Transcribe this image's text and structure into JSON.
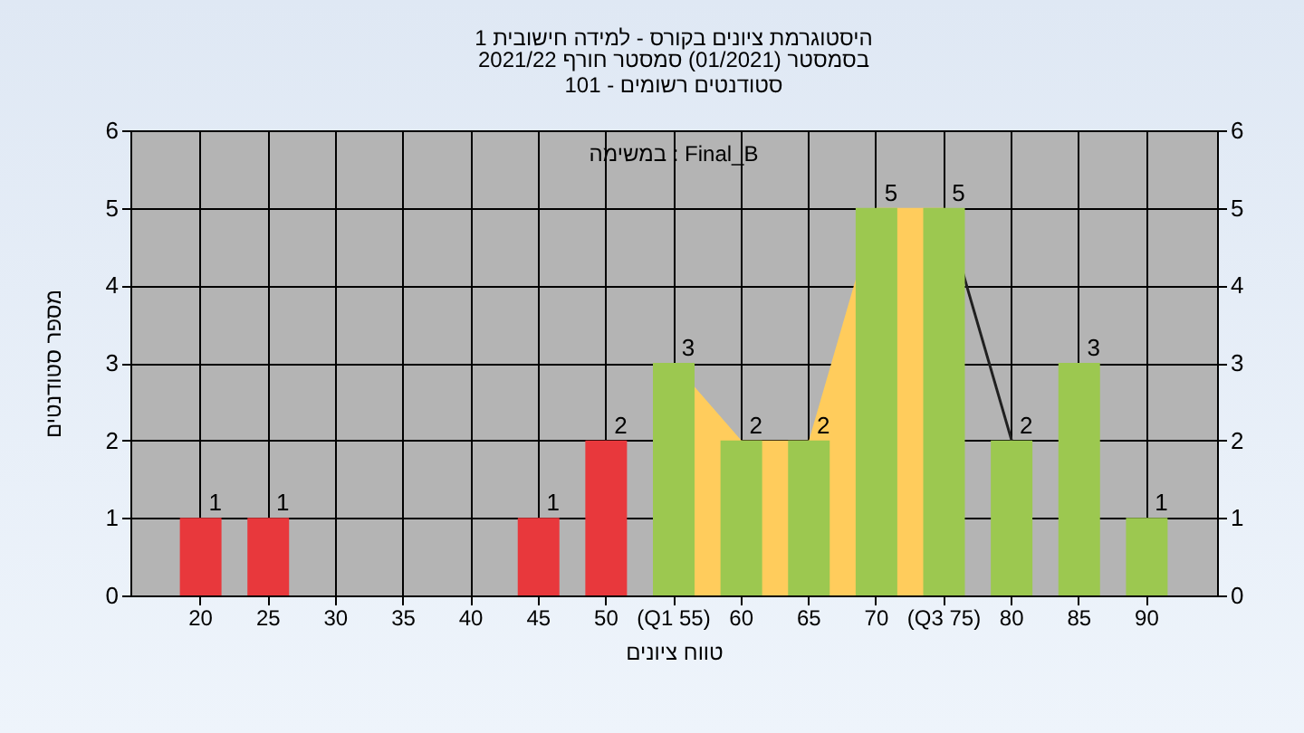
{
  "chart_data": {
    "type": "bar",
    "title": "היסטוגרמת ציונים בקורס - למידה חישובית 1",
    "subtitle": "בסמסטר (01/2021) סמסטר חורף 2021/22\nסטודנטים רשומים - 101",
    "xlabel": "טווח ציונים",
    "ylabel": "מספר סטודנטים",
    "annotations": [
      "במשימה : Final_B"
    ],
    "categories": [
      "20",
      "25",
      "30",
      "35",
      "40",
      "45",
      "50",
      "(Q1 55)",
      "60",
      "65",
      "70",
      "(Q3 75)",
      "80",
      "85",
      "90"
    ],
    "series": [
      {
        "type": "area",
        "color": "#ffcc5c",
        "values": [
          null,
          null,
          null,
          null,
          null,
          null,
          null,
          3,
          2,
          2,
          5,
          5,
          null,
          null,
          null
        ]
      },
      {
        "type": "line",
        "color": "#202020",
        "values": [
          null,
          null,
          null,
          null,
          null,
          null,
          null,
          null,
          null,
          null,
          null,
          5,
          2,
          null,
          null
        ]
      },
      {
        "colors": [
          "#e8383c",
          "#e8383c",
          "#e8383c",
          "#e8383c",
          "#e8383c",
          "#e8383c",
          "#e8383c",
          "#9cc850",
          "#9cc850",
          "#9cc850",
          "#9cc850",
          "#9cc850",
          "#9cc850",
          "#9cc850",
          "#9cc850"
        ],
        "values": [
          1,
          1,
          0,
          0,
          0,
          1,
          2,
          3,
          2,
          2,
          5,
          5,
          2,
          3,
          1
        ],
        "value_labels": [
          "1",
          "1",
          null,
          null,
          null,
          "1",
          "2",
          "3",
          "2",
          "2",
          "5",
          "5",
          "2",
          "3",
          "1"
        ]
      }
    ],
    "ylim": [
      0,
      6
    ],
    "yticks": [
      0,
      1,
      2,
      3,
      4,
      5,
      6
    ],
    "y2lim": [
      0,
      6
    ],
    "y2ticks": [
      0,
      1,
      2,
      3,
      4,
      5,
      6
    ],
    "grid": true
  }
}
